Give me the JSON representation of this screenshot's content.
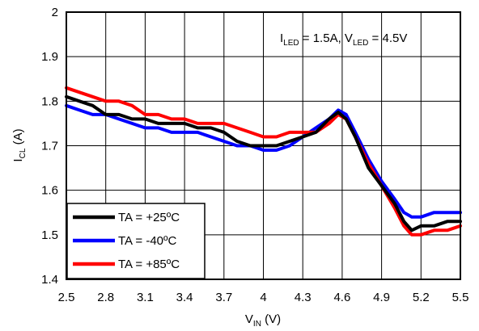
{
  "chart_data": {
    "type": "line",
    "xlabel": {
      "main": "V",
      "sub": "IN",
      "unit": " (V)"
    },
    "ylabel": {
      "main": "I",
      "sub": "CL",
      "unit": " (A)"
    },
    "xlim": [
      2.5,
      5.5
    ],
    "ylim": [
      1.4,
      2.0
    ],
    "xticks": [
      "2.5",
      "2.8",
      "3.1",
      "3.4",
      "3.7",
      "4",
      "4.3",
      "4.6",
      "4.9",
      "5.2",
      "5.5"
    ],
    "yticks": [
      "1.4",
      "1.5",
      "1.6",
      "1.7",
      "1.8",
      "1.9",
      "2"
    ],
    "grid": true,
    "legend_position": "bottom-left",
    "annotation": {
      "i": "I",
      "i_sub": "LED",
      "i_val": " = 1.5A, ",
      "v": "V",
      "v_sub": "LED",
      "v_val": " = 4.5V"
    },
    "series": [
      {
        "name": "TA = +25ºC",
        "color": "#000000",
        "points": [
          [
            2.5,
            1.81
          ],
          [
            2.6,
            1.8
          ],
          [
            2.7,
            1.79
          ],
          [
            2.8,
            1.77
          ],
          [
            2.9,
            1.77
          ],
          [
            3.0,
            1.76
          ],
          [
            3.1,
            1.76
          ],
          [
            3.2,
            1.75
          ],
          [
            3.3,
            1.75
          ],
          [
            3.4,
            1.75
          ],
          [
            3.5,
            1.74
          ],
          [
            3.6,
            1.74
          ],
          [
            3.7,
            1.73
          ],
          [
            3.8,
            1.71
          ],
          [
            3.9,
            1.7
          ],
          [
            4.0,
            1.7
          ],
          [
            4.1,
            1.7
          ],
          [
            4.2,
            1.71
          ],
          [
            4.3,
            1.72
          ],
          [
            4.4,
            1.73
          ],
          [
            4.5,
            1.76
          ],
          [
            4.57,
            1.775
          ],
          [
            4.63,
            1.76
          ],
          [
            4.7,
            1.72
          ],
          [
            4.8,
            1.65
          ],
          [
            4.9,
            1.61
          ],
          [
            5.0,
            1.57
          ],
          [
            5.07,
            1.53
          ],
          [
            5.13,
            1.51
          ],
          [
            5.2,
            1.52
          ],
          [
            5.3,
            1.52
          ],
          [
            5.4,
            1.53
          ],
          [
            5.5,
            1.53
          ]
        ]
      },
      {
        "name": "TA = -40ºC",
        "color": "#0000ff",
        "points": [
          [
            2.5,
            1.79
          ],
          [
            2.6,
            1.78
          ],
          [
            2.7,
            1.77
          ],
          [
            2.8,
            1.77
          ],
          [
            2.9,
            1.76
          ],
          [
            3.0,
            1.75
          ],
          [
            3.1,
            1.74
          ],
          [
            3.2,
            1.74
          ],
          [
            3.3,
            1.73
          ],
          [
            3.4,
            1.73
          ],
          [
            3.5,
            1.73
          ],
          [
            3.6,
            1.72
          ],
          [
            3.7,
            1.71
          ],
          [
            3.8,
            1.7
          ],
          [
            3.9,
            1.7
          ],
          [
            4.0,
            1.69
          ],
          [
            4.1,
            1.69
          ],
          [
            4.2,
            1.7
          ],
          [
            4.3,
            1.72
          ],
          [
            4.4,
            1.74
          ],
          [
            4.5,
            1.76
          ],
          [
            4.57,
            1.78
          ],
          [
            4.63,
            1.77
          ],
          [
            4.7,
            1.73
          ],
          [
            4.8,
            1.67
          ],
          [
            4.9,
            1.62
          ],
          [
            5.0,
            1.58
          ],
          [
            5.07,
            1.55
          ],
          [
            5.13,
            1.54
          ],
          [
            5.2,
            1.54
          ],
          [
            5.3,
            1.55
          ],
          [
            5.4,
            1.55
          ],
          [
            5.5,
            1.55
          ]
        ]
      },
      {
        "name": "TA = +85ºC",
        "color": "#ff0000",
        "points": [
          [
            2.5,
            1.83
          ],
          [
            2.6,
            1.82
          ],
          [
            2.7,
            1.81
          ],
          [
            2.8,
            1.8
          ],
          [
            2.9,
            1.8
          ],
          [
            3.0,
            1.79
          ],
          [
            3.1,
            1.77
          ],
          [
            3.2,
            1.77
          ],
          [
            3.3,
            1.76
          ],
          [
            3.4,
            1.76
          ],
          [
            3.5,
            1.75
          ],
          [
            3.6,
            1.75
          ],
          [
            3.7,
            1.75
          ],
          [
            3.8,
            1.74
          ],
          [
            3.9,
            1.73
          ],
          [
            4.0,
            1.72
          ],
          [
            4.1,
            1.72
          ],
          [
            4.2,
            1.73
          ],
          [
            4.3,
            1.73
          ],
          [
            4.4,
            1.73
          ],
          [
            4.5,
            1.75
          ],
          [
            4.57,
            1.77
          ],
          [
            4.63,
            1.76
          ],
          [
            4.7,
            1.72
          ],
          [
            4.8,
            1.66
          ],
          [
            4.9,
            1.61
          ],
          [
            5.0,
            1.56
          ],
          [
            5.07,
            1.52
          ],
          [
            5.13,
            1.5
          ],
          [
            5.2,
            1.5
          ],
          [
            5.3,
            1.51
          ],
          [
            5.4,
            1.51
          ],
          [
            5.5,
            1.52
          ]
        ]
      }
    ]
  }
}
